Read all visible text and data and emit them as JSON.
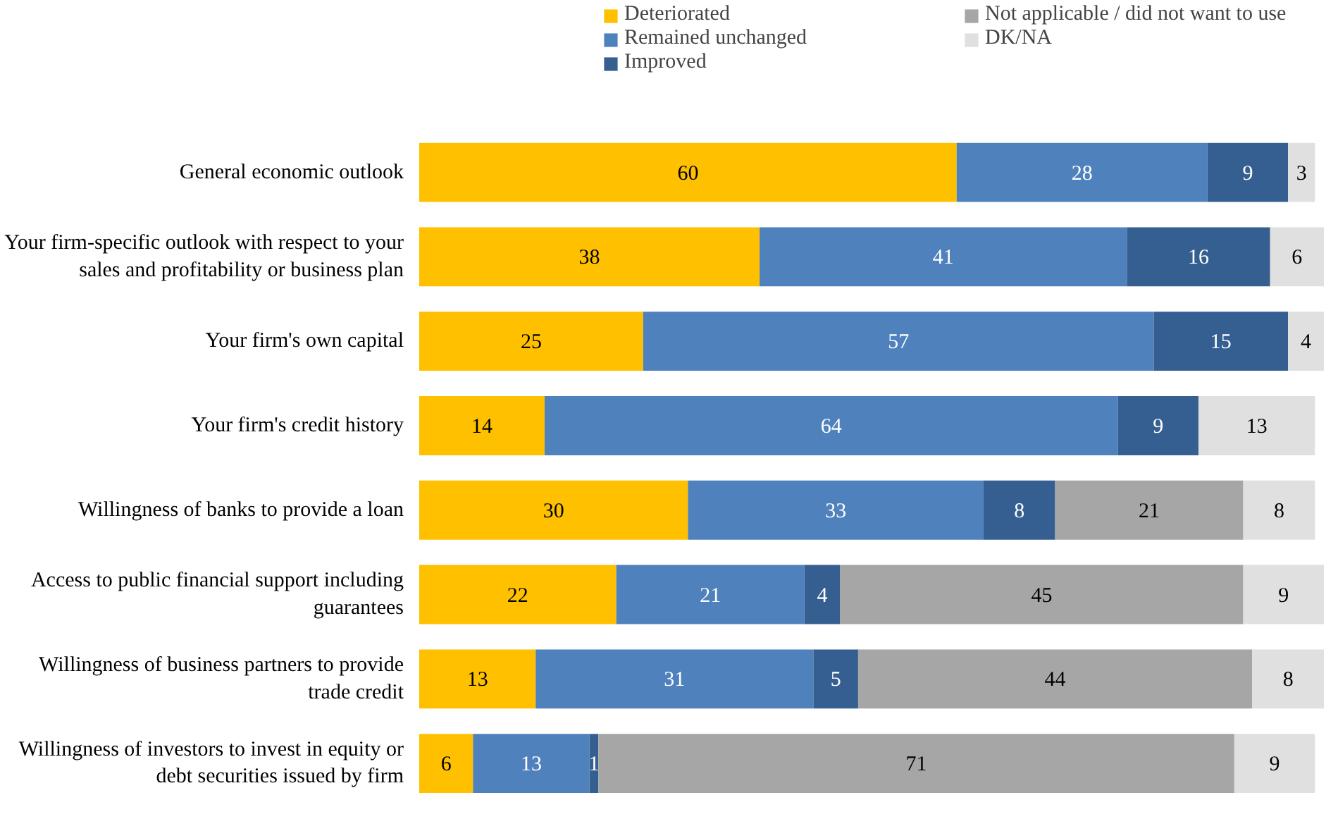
{
  "chart_data": {
    "type": "bar",
    "orientation": "horizontal",
    "stacked": true,
    "data_labels": true,
    "legend": "top",
    "grid": false,
    "tick_labels": "y",
    "categories": [
      "General economic outlook",
      "Your firm-specific outlook with respect to your sales and profitability or business plan",
      "Your firm's own capital",
      "Your firm's credit history",
      "Willingness of banks to provide a loan",
      "Access to public financial support including guarantees",
      "Willingness of business partners to provide trade credit",
      "Willingness of investors to invest in equity or debt securities issued by firm"
    ],
    "series": [
      {
        "name": "Deteriorated",
        "color": "#ffc000",
        "values": [
          60,
          38,
          25,
          14,
          30,
          22,
          13,
          6
        ]
      },
      {
        "name": "Remained unchanged",
        "color": "#4f81bd",
        "values": [
          28,
          41,
          57,
          64,
          33,
          21,
          31,
          13
        ]
      },
      {
        "name": "Improved",
        "color": "#365f91",
        "values": [
          9,
          16,
          15,
          9,
          8,
          4,
          5,
          1
        ]
      },
      {
        "name": "Not applicable / did not want to use",
        "color": "#a6a6a6",
        "values": [
          null,
          null,
          null,
          null,
          21,
          45,
          44,
          71
        ]
      },
      {
        "name": "DK/NA",
        "color": "#e0e0e0",
        "values": [
          3,
          6,
          4,
          13,
          8,
          9,
          8,
          9
        ]
      }
    ]
  }
}
